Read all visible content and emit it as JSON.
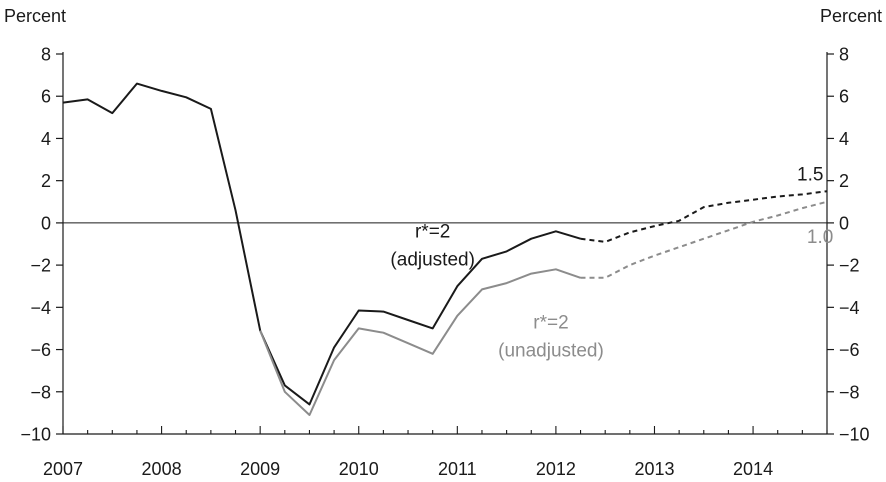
{
  "chart_data": {
    "type": "line",
    "y_unit_left": "Percent",
    "y_unit_right": "Percent",
    "ylim": [
      -10,
      8
    ],
    "yticks": [
      8,
      6,
      4,
      2,
      0,
      -2,
      -4,
      -6,
      -8,
      -10
    ],
    "xlim": [
      2007.0,
      2014.75
    ],
    "xticks": [
      "2007",
      "2008",
      "2009",
      "2010",
      "2011",
      "2012",
      "2013",
      "2014"
    ],
    "grid": false,
    "zero_line": true,
    "series": [
      {
        "color": "#1a1a1a",
        "points": [
          [
            2007.0,
            5.7
          ],
          [
            2007.25,
            5.85
          ],
          [
            2007.5,
            5.2
          ],
          [
            2007.75,
            6.6
          ],
          [
            2008.0,
            6.25
          ],
          [
            2008.25,
            5.95
          ],
          [
            2008.5,
            5.4
          ],
          [
            2008.75,
            0.6
          ],
          [
            2009.0,
            -5.1
          ],
          [
            2009.25,
            -7.7
          ],
          [
            2009.5,
            -8.6
          ],
          [
            2009.75,
            -5.9
          ],
          [
            2010.0,
            -4.15
          ],
          [
            2010.25,
            -4.2
          ],
          [
            2010.5,
            -4.6
          ],
          [
            2010.75,
            -5.0
          ],
          [
            2011.0,
            -3.0
          ],
          [
            2011.25,
            -1.7
          ],
          [
            2011.5,
            -1.35
          ],
          [
            2011.75,
            -0.75
          ],
          [
            2012.0,
            -0.4
          ],
          [
            2012.25,
            -0.75
          ]
        ],
        "projection": [
          [
            2012.25,
            -0.75
          ],
          [
            2012.5,
            -0.9
          ],
          [
            2012.75,
            -0.45
          ],
          [
            2013.0,
            -0.15
          ],
          [
            2013.25,
            0.1
          ],
          [
            2013.5,
            0.75
          ],
          [
            2013.75,
            0.95
          ],
          [
            2014.0,
            1.1
          ],
          [
            2014.25,
            1.25
          ],
          [
            2014.5,
            1.35
          ],
          [
            2014.75,
            1.5
          ]
        ]
      },
      {
        "color": "#8c8c8c",
        "points": [
          [
            2009.0,
            -5.1
          ],
          [
            2009.25,
            -8.0
          ],
          [
            2009.5,
            -9.1
          ],
          [
            2009.75,
            -6.5
          ],
          [
            2010.0,
            -5.0
          ],
          [
            2010.25,
            -5.2
          ],
          [
            2010.5,
            -5.7
          ],
          [
            2010.75,
            -6.2
          ],
          [
            2011.0,
            -4.4
          ],
          [
            2011.25,
            -3.15
          ],
          [
            2011.5,
            -2.85
          ],
          [
            2011.75,
            -2.4
          ],
          [
            2012.0,
            -2.2
          ],
          [
            2012.25,
            -2.6
          ]
        ],
        "projection": [
          [
            2012.25,
            -2.6
          ],
          [
            2012.5,
            -2.6
          ],
          [
            2012.75,
            -2.0
          ],
          [
            2013.0,
            -1.55
          ],
          [
            2013.25,
            -1.15
          ],
          [
            2013.5,
            -0.75
          ],
          [
            2013.75,
            -0.35
          ],
          [
            2014.0,
            0.05
          ],
          [
            2014.25,
            0.35
          ],
          [
            2014.5,
            0.7
          ],
          [
            2014.75,
            1.0
          ]
        ]
      }
    ],
    "annotations": [
      {
        "lines": [
          "r*=2",
          "(adjusted)"
        ],
        "color": "#1a1a1a",
        "x": 2010.75,
        "y": -0.7
      },
      {
        "lines": [
          "r*=2",
          "(unadjusted)"
        ],
        "color": "#8c8c8c",
        "x": 2011.95,
        "y": -5.0
      },
      {
        "lines": [
          "1.5"
        ],
        "color": "#1a1a1a",
        "x": 2014.58,
        "y": 2.0
      },
      {
        "lines": [
          "1.0"
        ],
        "color": "#8c8c8c",
        "x": 2014.68,
        "y": -0.95
      }
    ]
  }
}
